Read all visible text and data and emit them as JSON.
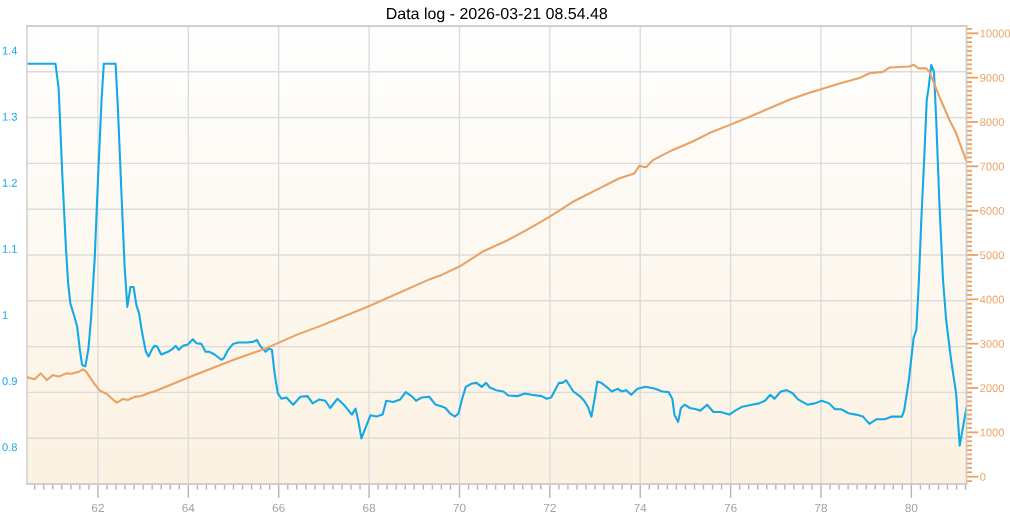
{
  "chart_data": {
    "type": "line",
    "title": "Data log - 2026-03-21 08.54.48",
    "xlim": [
      60.43,
      81.22
    ],
    "xticks": [
      62,
      64,
      66,
      68,
      70,
      72,
      74,
      76,
      78,
      80
    ],
    "ylim": [
      0.744,
      1.437
    ],
    "yticks": [
      0.8,
      0.9,
      1,
      1.1,
      1.2,
      1.3,
      1.4
    ],
    "y2lim": [
      -165,
      10165
    ],
    "y2ticks": [
      0,
      1000,
      2000,
      3000,
      4000,
      5000,
      6000,
      7000,
      8000,
      9000,
      10000
    ],
    "grid": true,
    "series": [
      {
        "color": "#13a9e6",
        "x": [
          60.43,
          61.06,
          61.13,
          61.21,
          61.29,
          61.34,
          61.39,
          61.48,
          61.54,
          61.6,
          61.65,
          61.72,
          61.79,
          61.85,
          61.93,
          62.0,
          62.08,
          62.13,
          62.39,
          62.44,
          62.52,
          62.59,
          62.65,
          62.72,
          62.79,
          62.85,
          62.91,
          62.98,
          63.06,
          63.12,
          63.19,
          63.25,
          63.31,
          63.4,
          63.55,
          63.66,
          63.72,
          63.79,
          63.88,
          63.99,
          64.1,
          64.18,
          64.29,
          64.38,
          64.47,
          64.58,
          64.73,
          64.78,
          64.88,
          64.99,
          65.1,
          65.28,
          65.43,
          65.52,
          65.59,
          65.71,
          65.78,
          65.85,
          65.91,
          65.98,
          66.06,
          66.17,
          66.32,
          66.48,
          66.64,
          66.75,
          66.9,
          67.03,
          67.14,
          67.3,
          67.44,
          67.57,
          67.62,
          67.7,
          67.76,
          67.83,
          67.92,
          68.03,
          68.16,
          68.3,
          68.38,
          68.53,
          68.69,
          68.81,
          68.94,
          69.04,
          69.17,
          69.33,
          69.47,
          69.58,
          69.69,
          69.79,
          69.9,
          69.98,
          70.06,
          70.14,
          70.27,
          70.38,
          70.49,
          70.59,
          70.67,
          70.81,
          70.97,
          71.08,
          71.29,
          71.45,
          71.59,
          71.82,
          71.93,
          72.03,
          72.2,
          72.28,
          72.36,
          72.52,
          72.66,
          72.76,
          72.84,
          72.92,
          73.0,
          73.05,
          73.14,
          73.27,
          73.37,
          73.5,
          73.59,
          73.69,
          73.8,
          73.94,
          74.12,
          74.33,
          74.49,
          74.63,
          74.71,
          74.76,
          74.84,
          74.9,
          74.98,
          75.1,
          75.24,
          75.33,
          75.48,
          75.62,
          75.78,
          75.97,
          76.1,
          76.26,
          76.47,
          76.63,
          76.76,
          76.88,
          76.97,
          77.11,
          77.24,
          77.38,
          77.49,
          77.7,
          77.86,
          78.02,
          78.18,
          78.31,
          78.45,
          78.61,
          78.77,
          78.93,
          79.07,
          79.23,
          79.41,
          79.57,
          79.79,
          79.84,
          79.94,
          80.05,
          80.11,
          80.16,
          80.22,
          80.29,
          80.34,
          80.38,
          80.44,
          80.5,
          80.55,
          80.62,
          80.7,
          80.77,
          80.88,
          80.99,
          81.07,
          81.22
        ],
        "values": [
          1.38,
          1.38,
          1.343,
          1.214,
          1.103,
          1.048,
          1.017,
          0.997,
          0.982,
          0.947,
          0.924,
          0.922,
          0.949,
          0.997,
          1.088,
          1.204,
          1.325,
          1.38,
          1.38,
          1.315,
          1.184,
          1.073,
          1.012,
          1.042,
          1.042,
          1.015,
          1.002,
          0.972,
          0.944,
          0.937,
          0.947,
          0.953,
          0.952,
          0.94,
          0.944,
          0.949,
          0.953,
          0.947,
          0.953,
          0.955,
          0.963,
          0.957,
          0.956,
          0.944,
          0.944,
          0.94,
          0.932,
          0.934,
          0.947,
          0.956,
          0.958,
          0.958,
          0.959,
          0.962,
          0.953,
          0.944,
          0.949,
          0.947,
          0.911,
          0.881,
          0.873,
          0.875,
          0.864,
          0.876,
          0.877,
          0.866,
          0.872,
          0.87,
          0.859,
          0.873,
          0.864,
          0.853,
          0.849,
          0.858,
          0.84,
          0.813,
          0.829,
          0.848,
          0.846,
          0.849,
          0.87,
          0.868,
          0.872,
          0.883,
          0.877,
          0.87,
          0.875,
          0.876,
          0.864,
          0.862,
          0.859,
          0.851,
          0.846,
          0.851,
          0.873,
          0.891,
          0.896,
          0.897,
          0.891,
          0.897,
          0.89,
          0.886,
          0.884,
          0.878,
          0.877,
          0.881,
          0.879,
          0.877,
          0.873,
          0.875,
          0.897,
          0.897,
          0.901,
          0.884,
          0.877,
          0.87,
          0.861,
          0.846,
          0.877,
          0.899,
          0.897,
          0.89,
          0.884,
          0.888,
          0.884,
          0.886,
          0.879,
          0.888,
          0.891,
          0.888,
          0.884,
          0.883,
          0.873,
          0.848,
          0.838,
          0.859,
          0.864,
          0.859,
          0.857,
          0.855,
          0.864,
          0.853,
          0.853,
          0.849,
          0.855,
          0.861,
          0.864,
          0.866,
          0.87,
          0.879,
          0.873,
          0.884,
          0.886,
          0.881,
          0.872,
          0.864,
          0.866,
          0.87,
          0.866,
          0.857,
          0.857,
          0.851,
          0.849,
          0.846,
          0.835,
          0.842,
          0.842,
          0.846,
          0.846,
          0.855,
          0.899,
          0.965,
          0.977,
          1.042,
          1.143,
          1.245,
          1.325,
          1.343,
          1.378,
          1.368,
          1.295,
          1.169,
          1.053,
          0.992,
          0.931,
          0.881,
          0.802,
          0.86
        ]
      },
      {
        "color": "#e9a263",
        "axis": "y2",
        "x": [
          60.43,
          60.6,
          60.73,
          60.87,
          61.0,
          61.14,
          61.3,
          61.41,
          61.56,
          61.67,
          61.74,
          61.89,
          62.04,
          62.19,
          62.32,
          62.42,
          62.55,
          62.66,
          62.81,
          62.96,
          63.11,
          63.29,
          63.96,
          64.99,
          65.73,
          66.42,
          66.9,
          67.98,
          69.31,
          69.56,
          70.0,
          70.52,
          71.04,
          71.48,
          71.99,
          72.51,
          73.03,
          73.54,
          73.87,
          73.98,
          74.13,
          74.28,
          74.72,
          75.16,
          75.53,
          75.97,
          76.42,
          76.86,
          77.3,
          77.74,
          78.0,
          78.41,
          78.85,
          79.07,
          79.37,
          79.52,
          79.96,
          80.05,
          80.16,
          80.33,
          80.4,
          80.62,
          80.84,
          80.99,
          81.21
        ],
        "values": [
          2240,
          2200,
          2330,
          2180,
          2290,
          2260,
          2330,
          2320,
          2360,
          2420,
          2370,
          2140,
          1940,
          1870,
          1750,
          1670,
          1750,
          1730,
          1800,
          1820,
          1880,
          1940,
          2220,
          2630,
          2900,
          3210,
          3390,
          3840,
          4440,
          4530,
          4740,
          5080,
          5320,
          5560,
          5860,
          6200,
          6470,
          6730,
          6840,
          7010,
          6980,
          7140,
          7370,
          7560,
          7750,
          7930,
          8120,
          8310,
          8500,
          8660,
          8740,
          8870,
          8990,
          9100,
          9130,
          9230,
          9250,
          9290,
          9210,
          9210,
          9130,
          8570,
          8050,
          7750,
          7140
        ]
      }
    ]
  }
}
